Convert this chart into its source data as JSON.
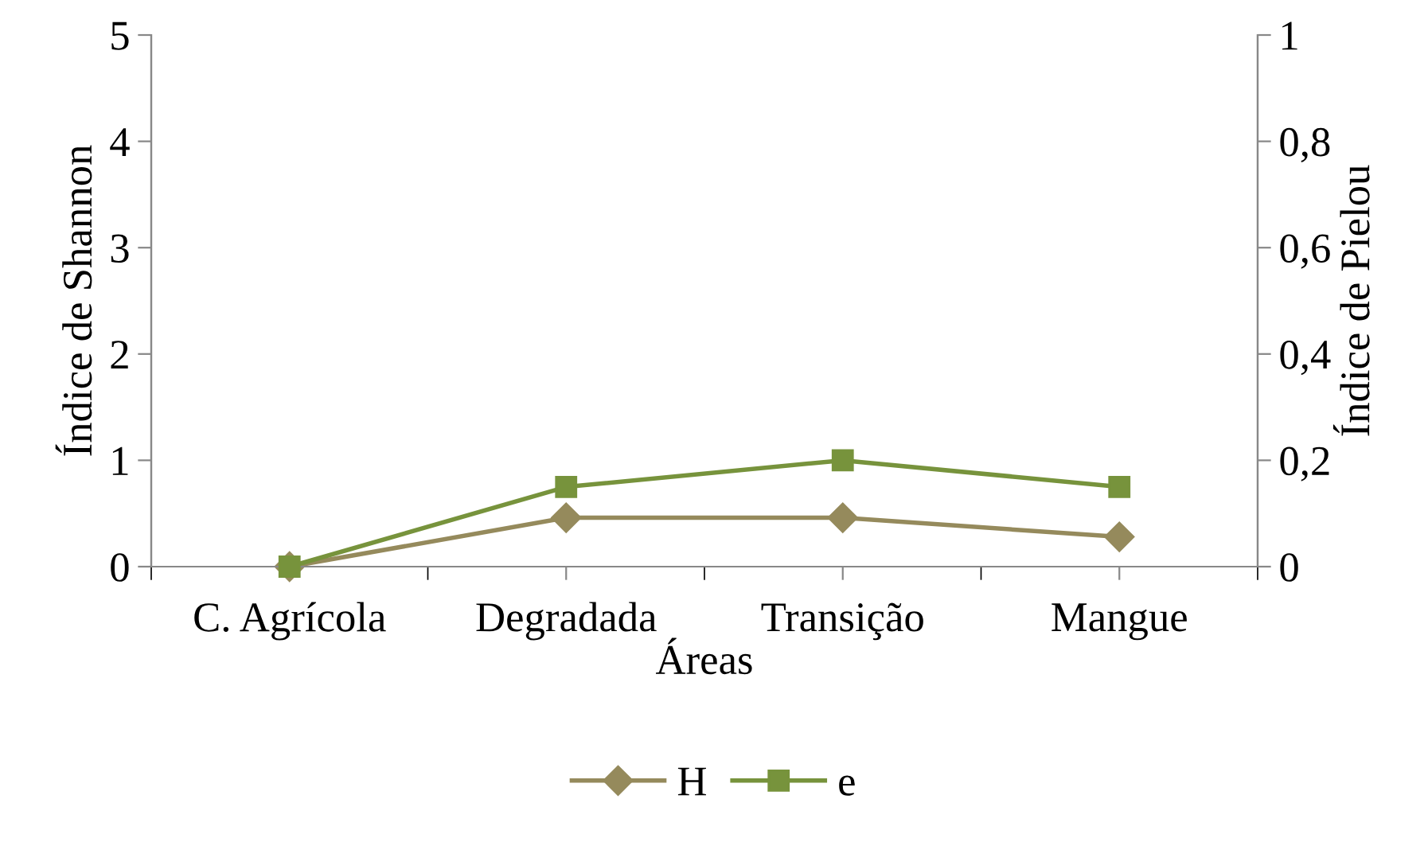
{
  "chart_data": {
    "type": "line",
    "xlabel": "Áreas",
    "ylabel": "Índice de Shannon",
    "y2label": "Índice de Pielou",
    "categories": [
      "C. Agrícola",
      "Degradada",
      "Transição",
      "Mangue"
    ],
    "series": [
      {
        "name": "H",
        "color": "#958a5c",
        "values": [
          0,
          0.46,
          0.46,
          0.28
        ],
        "marker": "diamond"
      },
      {
        "name": "e",
        "color": "#77933c",
        "values": [
          0,
          0.15,
          0.2,
          0.15
        ],
        "marker": "square",
        "axis": "y2"
      }
    ],
    "ylim": [
      0,
      5
    ],
    "yticks": [
      0,
      1,
      2,
      3,
      4,
      5
    ],
    "y2lim": [
      0,
      1
    ],
    "y2ticks": [
      0,
      {
        "value": 0.2,
        "label": "0,2"
      },
      {
        "value": 0.4,
        "label": "0,4"
      },
      {
        "value": 0.6,
        "label": "0,6"
      },
      {
        "value": 0.8,
        "label": "0,8"
      },
      1
    ],
    "grid": false,
    "legend": "bottom",
    "line_style": "solid"
  }
}
